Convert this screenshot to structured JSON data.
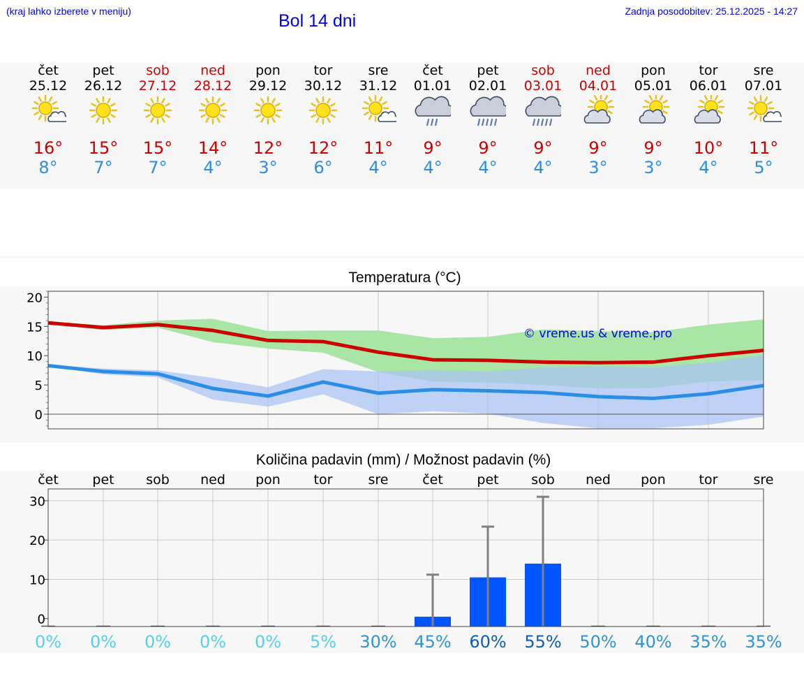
{
  "header": {
    "hint": "(kraj lahko izberete v meniju)",
    "title": "Bol 14 dni",
    "updated": "Zadnja posodobitev: 25.12.2025 - 14:27"
  },
  "colors": {
    "max": "#cc0000",
    "min": "#2a8ee6",
    "link": "#0000ee",
    "max_band": "#a9e6a6",
    "min_band": "#a9c2f4",
    "rain_bar": "#0055ff",
    "error_bar": "#808080"
  },
  "days": [
    {
      "name": "čet",
      "date": "25.12",
      "weekend": false,
      "icon": "sun-cloud-icon",
      "max": "16°",
      "min": "8°"
    },
    {
      "name": "pet",
      "date": "26.12",
      "weekend": false,
      "icon": "sun-icon",
      "max": "15°",
      "min": "7°"
    },
    {
      "name": "sob",
      "date": "27.12",
      "weekend": true,
      "icon": "sun-icon",
      "max": "15°",
      "min": "7°"
    },
    {
      "name": "ned",
      "date": "28.12",
      "weekend": true,
      "icon": "sun-icon",
      "max": "14°",
      "min": "4°"
    },
    {
      "name": "pon",
      "date": "29.12",
      "weekend": false,
      "icon": "sun-icon",
      "max": "12°",
      "min": "3°"
    },
    {
      "name": "tor",
      "date": "30.12",
      "weekend": false,
      "icon": "sun-icon",
      "max": "12°",
      "min": "6°"
    },
    {
      "name": "sre",
      "date": "31.12",
      "weekend": false,
      "icon": "sun-cloud-icon",
      "max": "11°",
      "min": "4°"
    },
    {
      "name": "čet",
      "date": "01.01",
      "weekend": false,
      "icon": "cloud-rain-icon",
      "max": "9°",
      "min": "4°"
    },
    {
      "name": "pet",
      "date": "02.01",
      "weekend": false,
      "icon": "cloud-heavy-rain-icon",
      "max": "9°",
      "min": "4°"
    },
    {
      "name": "sob",
      "date": "03.01",
      "weekend": true,
      "icon": "cloud-heavy-rain-icon",
      "max": "9°",
      "min": "4°"
    },
    {
      "name": "ned",
      "date": "04.01",
      "weekend": true,
      "icon": "sun-behind-cloud-icon",
      "max": "9°",
      "min": "3°"
    },
    {
      "name": "pon",
      "date": "05.01",
      "weekend": false,
      "icon": "sun-behind-cloud-icon",
      "max": "9°",
      "min": "3°"
    },
    {
      "name": "tor",
      "date": "06.01",
      "weekend": false,
      "icon": "sun-behind-cloud-icon",
      "max": "10°",
      "min": "4°"
    },
    {
      "name": "sre",
      "date": "07.01",
      "weekend": false,
      "icon": "sun-cloud-icon",
      "max": "11°",
      "min": "5°"
    }
  ],
  "chart_data": [
    {
      "type": "line",
      "title": "Temperatura (°C)",
      "watermark": "© vreme.us & vreme.pro",
      "ylim": [
        -2.5,
        21
      ],
      "yticks": [
        0,
        5,
        10,
        15,
        20
      ],
      "grid": true,
      "series": [
        {
          "name": "max",
          "values": [
            15.6,
            14.8,
            15.3,
            14.3,
            12.6,
            12.4,
            10.6,
            9.3,
            9.2,
            8.9,
            8.8,
            8.9,
            10.0,
            10.9
          ],
          "band_low": [
            15.4,
            14.4,
            14.8,
            12.3,
            11.2,
            10.5,
            7.2,
            5.6,
            5.4,
            5.0,
            4.4,
            4.5,
            5.6,
            5.8
          ],
          "band_high": [
            15.8,
            15.2,
            16.0,
            16.3,
            14.2,
            14.3,
            14.3,
            13.0,
            13.2,
            14.5,
            14.2,
            14.0,
            15.3,
            16.2
          ]
        },
        {
          "name": "min",
          "values": [
            8.3,
            7.3,
            6.9,
            4.4,
            3.1,
            5.5,
            3.6,
            4.2,
            4.0,
            3.7,
            3.0,
            2.7,
            3.5,
            4.9
          ],
          "band_low": [
            8.2,
            6.8,
            6.3,
            2.5,
            1.3,
            3.4,
            0.0,
            0.5,
            0.1,
            -1.5,
            -2.4,
            -2.4,
            -1.8,
            -0.4
          ],
          "band_high": [
            8.4,
            7.8,
            7.5,
            6.2,
            4.6,
            7.7,
            7.3,
            7.5,
            7.3,
            8.0,
            8.2,
            8.0,
            8.8,
            10.1
          ]
        }
      ]
    },
    {
      "type": "bar",
      "title": "Količina padavin (mm) / Možnost padavin (%)",
      "categories": [
        "čet",
        "pet",
        "sob",
        "ned",
        "pon",
        "tor",
        "sre",
        "čet",
        "pet",
        "sob",
        "ned",
        "pon",
        "tor",
        "sre"
      ],
      "ylim": [
        -2,
        33
      ],
      "yticks": [
        0,
        10,
        20,
        30
      ],
      "values": [
        0,
        0,
        0,
        0,
        0,
        0,
        0,
        0.5,
        10.5,
        14.0,
        0,
        0,
        0,
        0
      ],
      "error_high": [
        0,
        0,
        0,
        0,
        0,
        0,
        0,
        11.2,
        23.4,
        31.0,
        0,
        0,
        0,
        0
      ],
      "probability": [
        "0%",
        "0%",
        "0%",
        "0%",
        "0%",
        "5%",
        "30%",
        "45%",
        "60%",
        "55%",
        "50%",
        "40%",
        "35%",
        "35%"
      ],
      "probability_colors": [
        "#55d0ea",
        "#55d0ea",
        "#55d0ea",
        "#55d0ea",
        "#55d0ea",
        "#55d0ea",
        "#2e95d2",
        "#2e95d2",
        "#0e5fad",
        "#0e5fad",
        "#2e95d2",
        "#2e95d2",
        "#2e95d2",
        "#2e95d2"
      ]
    }
  ]
}
